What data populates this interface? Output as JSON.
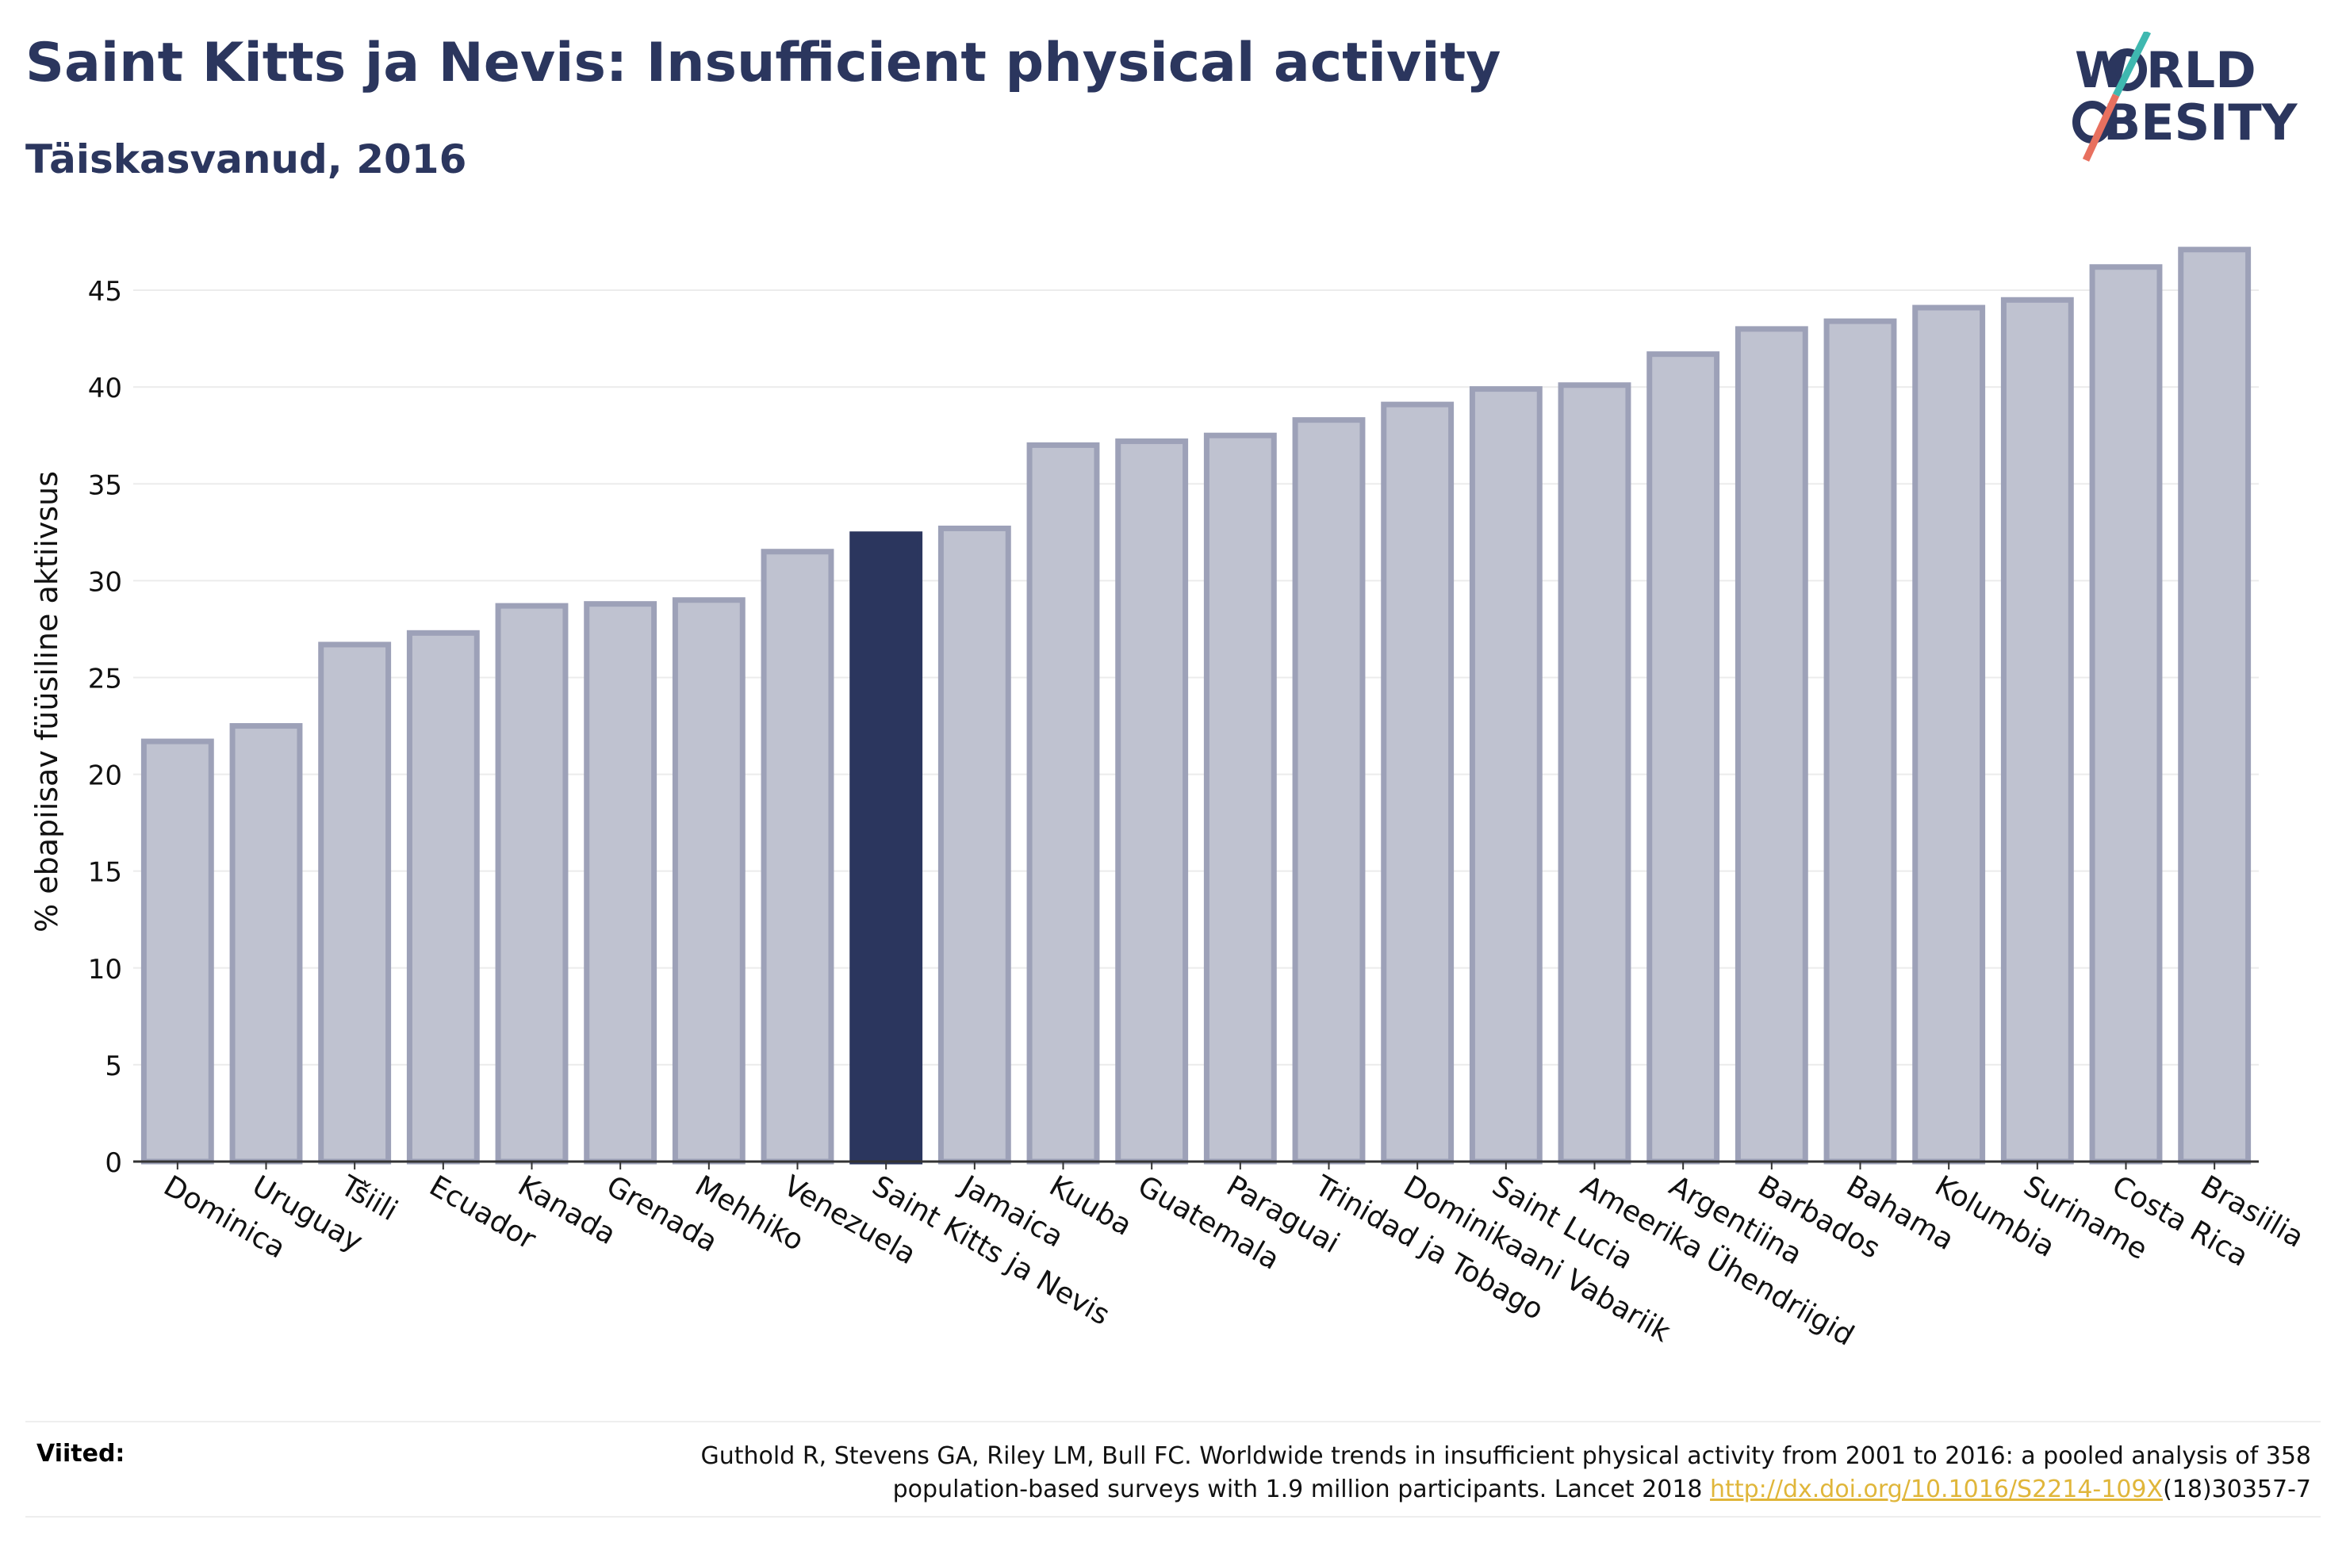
{
  "title": "Saint Kitts ja Nevis: Insufficient physical activity",
  "subtitle": "Täiskasvanud, 2016",
  "logo": {
    "line1": "W RLD",
    "line2": "BESITY",
    "text": "WORLD OBESITY",
    "icon": "world-obesity-logo"
  },
  "colors": {
    "bar": "#bfc2d0",
    "bar_border": "#9da1b8",
    "highlight": "#2b365e",
    "grid": "#ececec",
    "text": "#2b365e",
    "logo_teal": "#3fb8b0",
    "logo_red": "#e8705f"
  },
  "chart_data": {
    "type": "bar",
    "ylabel": "% ebapiisav füüsiline aktiivsus",
    "xlabel": "",
    "ylim": [
      0,
      47.5
    ],
    "yticks": [
      0,
      5,
      10,
      15,
      20,
      25,
      30,
      35,
      40,
      45
    ],
    "grid": true,
    "highlight": "Saint Kitts ja Nevis",
    "categories": [
      "Dominica",
      "Uruguay",
      "Tšiili",
      "Ecuador",
      "Kanada",
      "Grenada",
      "Mehhiko",
      "Venezuela",
      "Saint Kitts ja Nevis",
      "Jamaica",
      "Kuuba",
      "Guatemala",
      "Paraguai",
      "Trinidad ja Tobago",
      "Dominikaani Vabariik",
      "Saint Lucia",
      "Ameerika Ühendriigid",
      "Argentiina",
      "Barbados",
      "Bahama",
      "Kolumbia",
      "Suriname",
      "Costa Rica",
      "Brasiilia"
    ],
    "values": [
      21.7,
      22.5,
      26.7,
      27.3,
      28.7,
      28.8,
      29.0,
      31.5,
      32.4,
      32.7,
      37.0,
      37.2,
      37.5,
      38.3,
      39.1,
      39.9,
      40.1,
      41.7,
      43.0,
      43.4,
      44.1,
      44.5,
      46.2,
      47.1
    ]
  },
  "footer": {
    "label": "Viited:",
    "line1": "Guthold R, Stevens GA, Riley LM, Bull FC. Worldwide trends in insufficient physical activity from 2001 to 2016: a pooled analysis of 358",
    "line2_pre": "population-based surveys with 1.9 million participants. Lancet 2018 ",
    "link": "http://dx.doi.org/10.1016/S2214-109X",
    "line2_post": "(18)30357-7"
  }
}
